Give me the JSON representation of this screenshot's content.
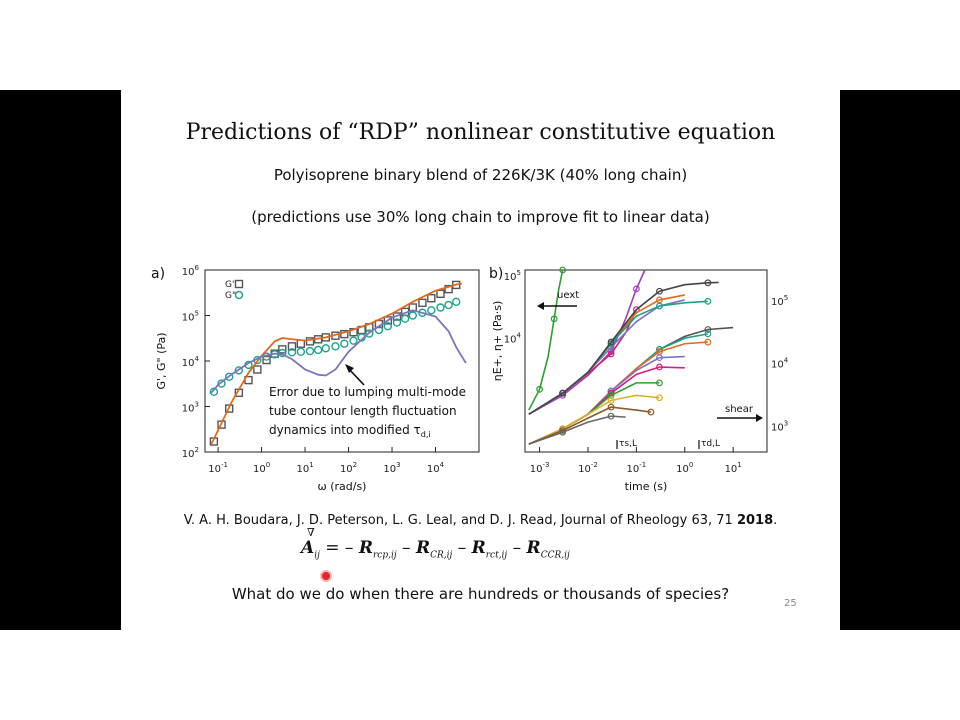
{
  "slide": {
    "title": "Predictions of “RDP” nonlinear constitutive equation",
    "subtitle1": "Polyisoprene binary blend of 226K/3K (40% long chain)",
    "subtitle2": "(predictions use 30% long chain to improve fit to linear data)",
    "citation_text": "V. A. H. Boudara, J. D. Peterson, L. G. Leal, and D. J. Read, Journal of Rheology 63, 71 ",
    "citation_year": "2018",
    "question": "What do we do when there are hundreds or thousands of species?",
    "page_number": "25",
    "equation": {
      "lhs": "A",
      "lhs_sub": "ij",
      "terms": [
        {
          "sign": "= –",
          "sym": "R",
          "sub": "rcp,ij"
        },
        {
          "sign": "–",
          "sym": "R",
          "sub": "CR,ij"
        },
        {
          "sign": "–",
          "sym": "R",
          "sub": "rct,ij"
        },
        {
          "sign": "–",
          "sym": "R",
          "sub": "CCR,ij"
        }
      ]
    }
  },
  "chart_data": [
    {
      "type": "line",
      "panel_label": "a)",
      "xlabel": "ω (rad/s)",
      "ylabel": "G', G\" (Pa)",
      "x_scale": "log",
      "y_scale": "log",
      "xlim": [
        0.05,
        100000
      ],
      "ylim": [
        100,
        1000000
      ],
      "x_ticks": [
        {
          "v": 0.1,
          "e": "-1"
        },
        {
          "v": 1,
          "e": "0"
        },
        {
          "v": 10,
          "e": "1"
        },
        {
          "v": 100,
          "e": "2"
        },
        {
          "v": 1000,
          "e": "3"
        },
        {
          "v": 10000,
          "e": "4"
        }
      ],
      "y_ticks": [
        {
          "v": 100,
          "e": "2"
        },
        {
          "v": 1000,
          "e": "3"
        },
        {
          "v": 10000,
          "e": "4"
        },
        {
          "v": 100000,
          "e": "5"
        },
        {
          "v": 1000000,
          "e": "6"
        }
      ],
      "legend": [
        {
          "name": "G'",
          "marker": "square",
          "color": "#555555"
        },
        {
          "name": "G\"",
          "marker": "circle",
          "color": "#1aa38a"
        }
      ],
      "annotation": "Error due to lumping multi-mode tube contour length fluctuation dynamics into modified τd,i",
      "series": [
        {
          "name": "G'",
          "marker": "square",
          "color": "#555555",
          "x": [
            0.08,
            0.12,
            0.18,
            0.3,
            0.5,
            0.8,
            1.3,
            2,
            3,
            5,
            8,
            13,
            20,
            30,
            50,
            80,
            130,
            200,
            300,
            500,
            800,
            1300,
            2000,
            3000,
            5000,
            8000,
            13000,
            20000,
            30000
          ],
          "y": [
            170,
            400,
            900,
            2000,
            3800,
            6500,
            10500,
            14500,
            18000,
            21000,
            24000,
            27000,
            30000,
            33000,
            36000,
            39000,
            43000,
            48000,
            55000,
            65000,
            78000,
            95000,
            120000,
            150000,
            190000,
            240000,
            300000,
            380000,
            470000
          ]
        },
        {
          "name": "G\"",
          "marker": "circle",
          "color": "#1aa38a",
          "x": [
            0.08,
            0.12,
            0.18,
            0.3,
            0.5,
            0.8,
            1.3,
            2,
            3,
            5,
            8,
            13,
            20,
            30,
            50,
            80,
            130,
            200,
            300,
            500,
            800,
            1300,
            2000,
            3000,
            5000,
            8000,
            13000,
            20000,
            30000
          ],
          "y": [
            2100,
            3200,
            4500,
            6200,
            8200,
            10500,
            12500,
            14000,
            15000,
            15500,
            16000,
            16500,
            17500,
            19000,
            21000,
            24000,
            28000,
            33000,
            40000,
            48000,
            58000,
            70000,
            85000,
            100000,
            115000,
            130000,
            150000,
            170000,
            200000
          ]
        },
        {
          "name": "G' model",
          "line": true,
          "color": "#e26a1c",
          "x": [
            0.07,
            0.1,
            0.2,
            0.5,
            1,
            2,
            3,
            5,
            10,
            30,
            100,
            300,
            1000,
            3000,
            10000,
            30000,
            40000
          ],
          "y": [
            150,
            300,
            1200,
            5500,
            13000,
            27000,
            32000,
            30000,
            28000,
            33000,
            45000,
            65000,
            110000,
            200000,
            350000,
            480000,
            500000
          ]
        },
        {
          "name": "G\" model",
          "line": true,
          "color": "#7b73c0",
          "x": [
            0.07,
            0.1,
            0.2,
            0.5,
            1,
            2,
            3,
            5,
            10,
            20,
            30,
            50,
            100,
            300,
            1000,
            3000,
            10000,
            20000,
            30000,
            50000
          ],
          "y": [
            2000,
            3000,
            5000,
            9000,
            12500,
            14500,
            14000,
            11000,
            6500,
            5000,
            4800,
            6500,
            16000,
            42000,
            90000,
            130000,
            95000,
            45000,
            20000,
            9000
          ]
        }
      ]
    },
    {
      "type": "line",
      "panel_label": "b)",
      "xlabel": "time (s)",
      "ylabel": "ηE+, η+ (Pa·s)",
      "x_scale": "log",
      "y_scale": "log",
      "xlim": [
        0.0005,
        50
      ],
      "ylim": [
        150,
        120000
      ],
      "x_ticks": [
        {
          "v": 0.001,
          "e": "-3"
        },
        {
          "v": 0.01,
          "e": "-2"
        },
        {
          "v": 0.1,
          "e": "-1"
        },
        {
          "v": 1,
          "e": "0"
        },
        {
          "v": 10,
          "e": "1"
        }
      ],
      "y_ticks_left": [
        {
          "v": 10000,
          "e": "4"
        },
        {
          "v": 100000,
          "e": "5"
        }
      ],
      "y_ticks_right": [
        {
          "label": "10",
          "e": "5",
          "v": 40000
        },
        {
          "label": "10",
          "e": "4",
          "v": 4000
        },
        {
          "label": "10",
          "e": "3",
          "v": 400
        }
      ],
      "labels": {
        "uext": "uext",
        "shear": "shear",
        "tau_s": "τs,L",
        "tau_d": "τd,L"
      },
      "series": [
        {
          "name": "uext-1",
          "color": "#2ca02c",
          "x": [
            0.0006,
            0.001,
            0.0015,
            0.002,
            0.0025,
            0.003
          ],
          "y": [
            700,
            1500,
            5000,
            20000,
            60000,
            120000
          ]
        },
        {
          "name": "uext-2",
          "color": "#9b3fbf",
          "x": [
            0.0006,
            0.003,
            0.01,
            0.03,
            0.06,
            0.1,
            0.15
          ],
          "y": [
            600,
            1200,
            2500,
            6000,
            20000,
            60000,
            120000
          ]
        },
        {
          "name": "uext-3",
          "color": "#e0197a",
          "x": [
            0.0006,
            0.003,
            0.01,
            0.03,
            0.06,
            0.1
          ],
          "y": [
            600,
            1300,
            2700,
            5500,
            12000,
            28000
          ]
        },
        {
          "name": "uext-4",
          "color": "#7b73c0",
          "x": [
            0.0006,
            0.003,
            0.01,
            0.03,
            0.1,
            0.3,
            1
          ],
          "y": [
            600,
            1300,
            2800,
            7000,
            18000,
            32000,
            40000
          ]
        },
        {
          "name": "uext-5",
          "color": "#e26a1c",
          "x": [
            0.0006,
            0.003,
            0.01,
            0.03,
            0.1,
            0.3,
            1
          ],
          "y": [
            600,
            1300,
            2800,
            8000,
            25000,
            40000,
            48000
          ]
        },
        {
          "name": "uext-6",
          "color": "#1aa38a",
          "x": [
            0.0006,
            0.003,
            0.01,
            0.03,
            0.1,
            0.3,
            1,
            3
          ],
          "y": [
            600,
            1300,
            2800,
            8000,
            22000,
            32000,
            36000,
            38000
          ]
        },
        {
          "name": "uext-7",
          "color": "#444444",
          "x": [
            0.0006,
            0.003,
            0.01,
            0.03,
            0.1,
            0.3,
            1,
            3,
            5
          ],
          "y": [
            600,
            1300,
            2800,
            8500,
            28000,
            55000,
            70000,
            75000,
            76000
          ]
        },
        {
          "name": "shear-1",
          "color": "#555555",
          "x": [
            0.0006,
            0.003,
            0.01,
            0.03,
            0.1,
            0.3,
            1,
            3,
            10
          ],
          "y": [
            200,
            350,
            600,
            1400,
            3200,
            6500,
            10500,
            13500,
            14500
          ]
        },
        {
          "name": "shear-2",
          "color": "#1aa38a",
          "x": [
            0.0006,
            0.003,
            0.01,
            0.03,
            0.1,
            0.3,
            1,
            3
          ],
          "y": [
            200,
            350,
            600,
            1400,
            3200,
            6500,
            9800,
            11500
          ]
        },
        {
          "name": "shear-3",
          "color": "#e26a1c",
          "x": [
            0.0006,
            0.003,
            0.01,
            0.03,
            0.1,
            0.3,
            1,
            3
          ],
          "y": [
            200,
            350,
            600,
            1400,
            3200,
            6000,
            8000,
            8500
          ]
        },
        {
          "name": "shear-4",
          "color": "#7b73c0",
          "x": [
            0.0006,
            0.003,
            0.01,
            0.03,
            0.1,
            0.3,
            1
          ],
          "y": [
            200,
            350,
            600,
            1400,
            3000,
            4800,
            5000
          ]
        },
        {
          "name": "shear-5",
          "color": "#e0197a",
          "x": [
            0.0006,
            0.003,
            0.01,
            0.03,
            0.1,
            0.3,
            1
          ],
          "y": [
            200,
            350,
            600,
            1300,
            2600,
            3400,
            3300
          ]
        },
        {
          "name": "shear-6",
          "color": "#2ca02c",
          "x": [
            0.0006,
            0.003,
            0.01,
            0.03,
            0.1,
            0.3
          ],
          "y": [
            200,
            350,
            600,
            1200,
            1900,
            1900
          ]
        },
        {
          "name": "shear-7",
          "color": "#e0b020",
          "x": [
            0.0006,
            0.003,
            0.01,
            0.03,
            0.1,
            0.3
          ],
          "y": [
            200,
            350,
            600,
            1000,
            1200,
            1100
          ]
        },
        {
          "name": "shear-8",
          "color": "#8b5a2b",
          "x": [
            0.0006,
            0.003,
            0.01,
            0.03,
            0.1,
            0.2
          ],
          "y": [
            200,
            330,
            520,
            780,
            700,
            650
          ]
        },
        {
          "name": "shear-9",
          "color": "#666666",
          "x": [
            0.0006,
            0.003,
            0.01,
            0.03,
            0.06
          ],
          "y": [
            200,
            310,
            450,
            560,
            540
          ]
        }
      ]
    }
  ]
}
